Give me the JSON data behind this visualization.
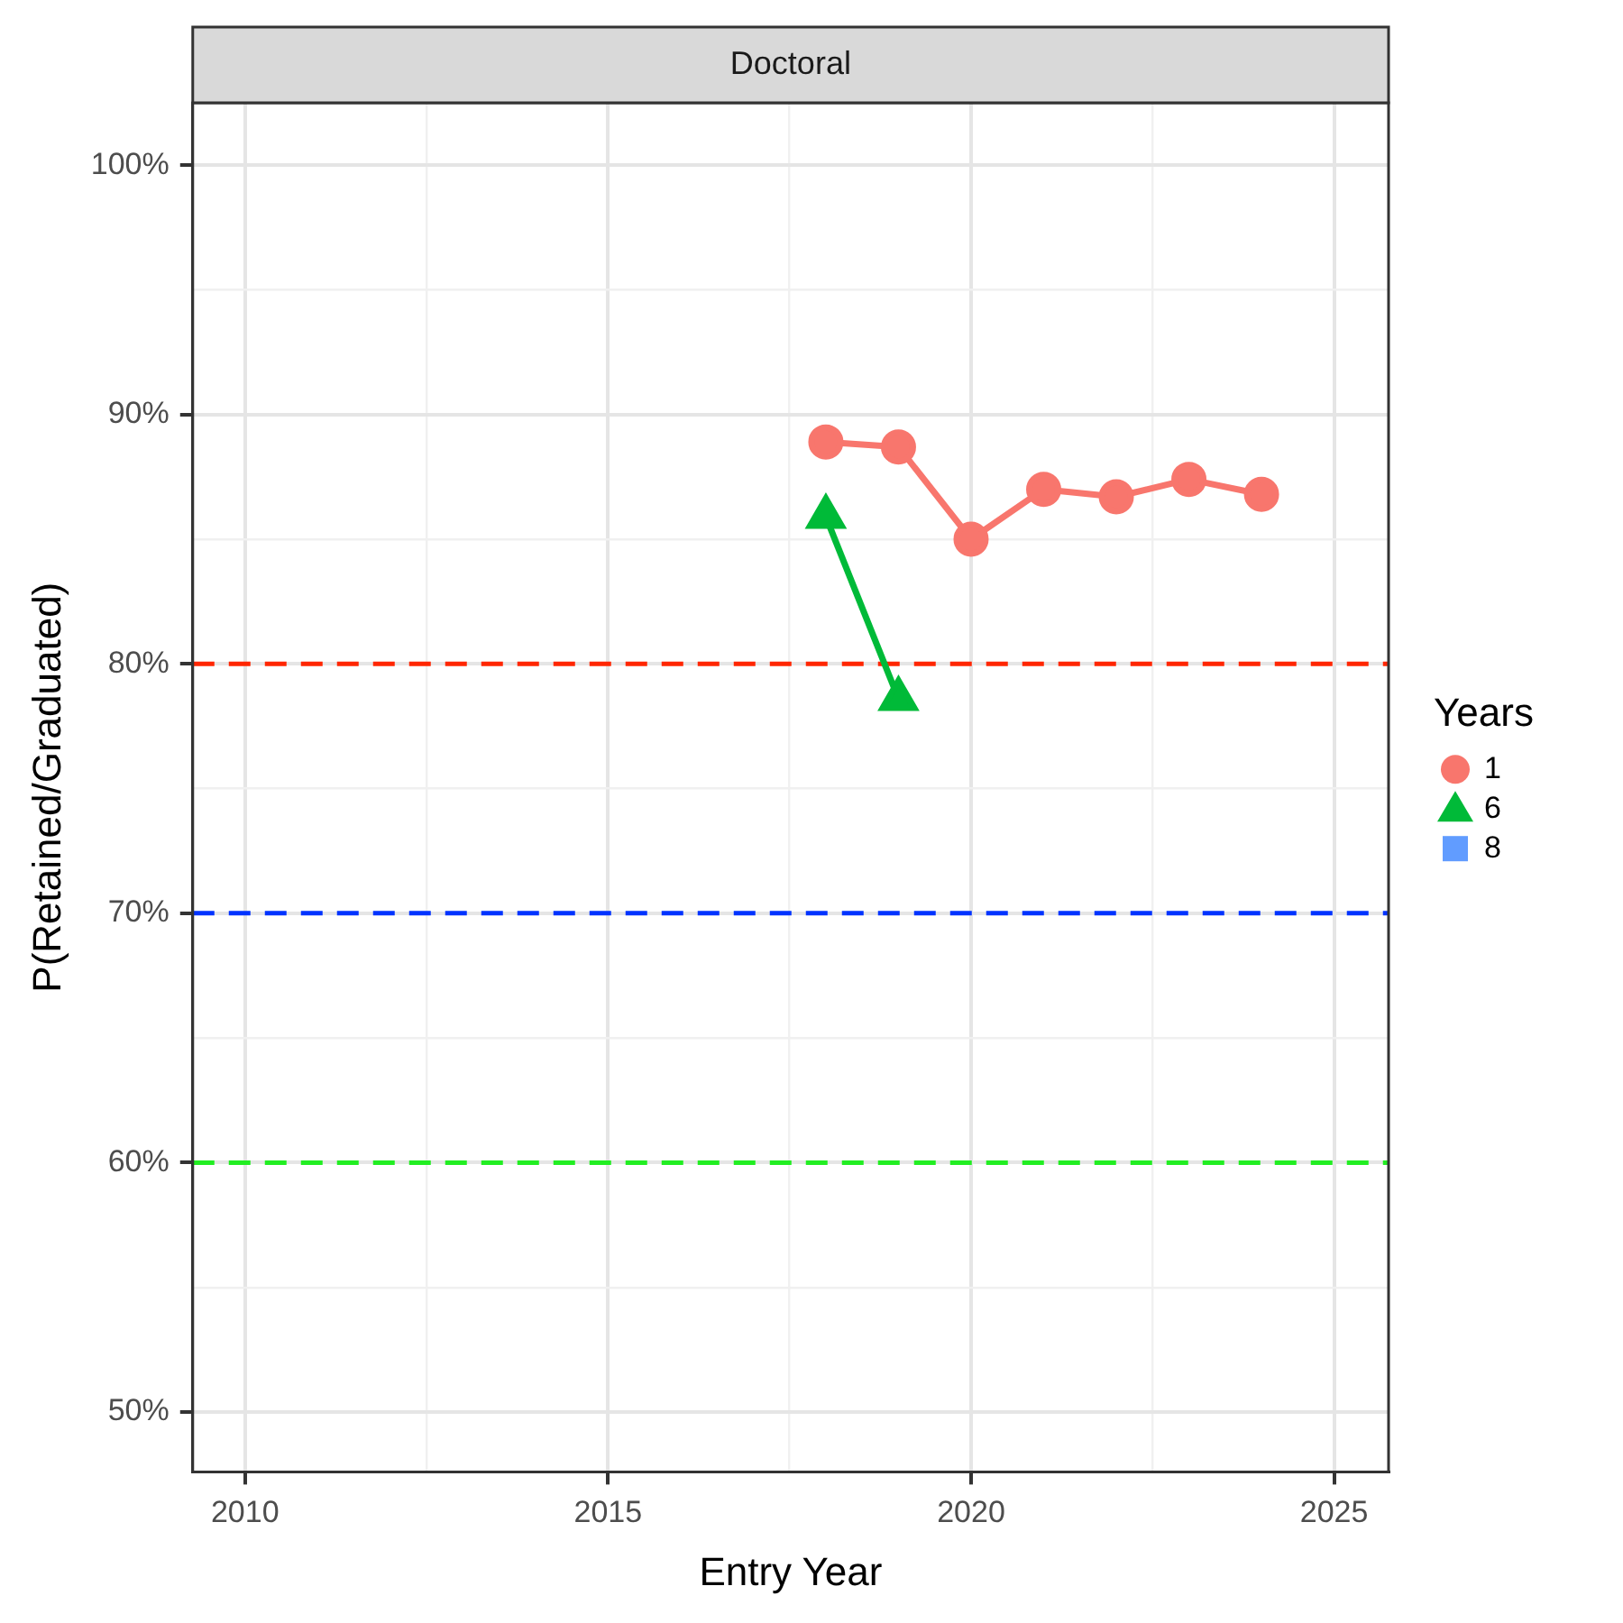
{
  "chart_data": {
    "type": "line",
    "title": "Doctoral",
    "xlabel": "Entry Year",
    "ylabel": "P(Retained/Graduated)",
    "legend_title": "Years",
    "legend": "right",
    "grid": true,
    "line_style": "solid",
    "xlim": [
      2009.28,
      2025.75
    ],
    "xticks": [
      2010,
      {
        "value": 2012.5,
        "label": null
      },
      2015,
      {
        "value": 2017.5,
        "label": null
      },
      2020,
      {
        "value": 2022.5,
        "label": null
      },
      2025
    ],
    "ylim": [
      47.6,
      102.5
    ],
    "yticks": [
      {
        "value": 50,
        "label": "50%"
      },
      {
        "value": 55,
        "label": null
      },
      {
        "value": 60,
        "label": "60%"
      },
      {
        "value": 65,
        "label": null
      },
      {
        "value": 70,
        "label": "70%"
      },
      {
        "value": 75,
        "label": null
      },
      {
        "value": 80,
        "label": "80%"
      },
      {
        "value": 85,
        "label": null
      },
      {
        "value": 90,
        "label": "90%"
      },
      {
        "value": 95,
        "label": null
      },
      {
        "value": 100,
        "label": "100%"
      }
    ],
    "series": [
      {
        "name": "1",
        "color": "#f8766d",
        "marker": "circle",
        "x": [
          2018,
          2019,
          2020,
          2021,
          2022,
          2023,
          2024
        ],
        "values": [
          88.9,
          88.7,
          85.0,
          87.0,
          86.7,
          87.4,
          86.8
        ]
      },
      {
        "name": "6",
        "color": "#00ba38",
        "marker": "triangle",
        "x": [
          2018,
          2019
        ],
        "values": [
          85.9,
          78.6
        ]
      },
      {
        "name": "8",
        "color": "#619cff",
        "marker": "square"
      }
    ],
    "ref_lines": [
      {
        "axis": "y",
        "value": 80,
        "color": "#ff2600",
        "line_style": "dashed"
      },
      {
        "axis": "y",
        "value": 70,
        "color": "#0033ff",
        "line_style": "dashed"
      },
      {
        "axis": "y",
        "value": 60,
        "color": "#22ee22",
        "line_style": "dashed"
      }
    ]
  }
}
